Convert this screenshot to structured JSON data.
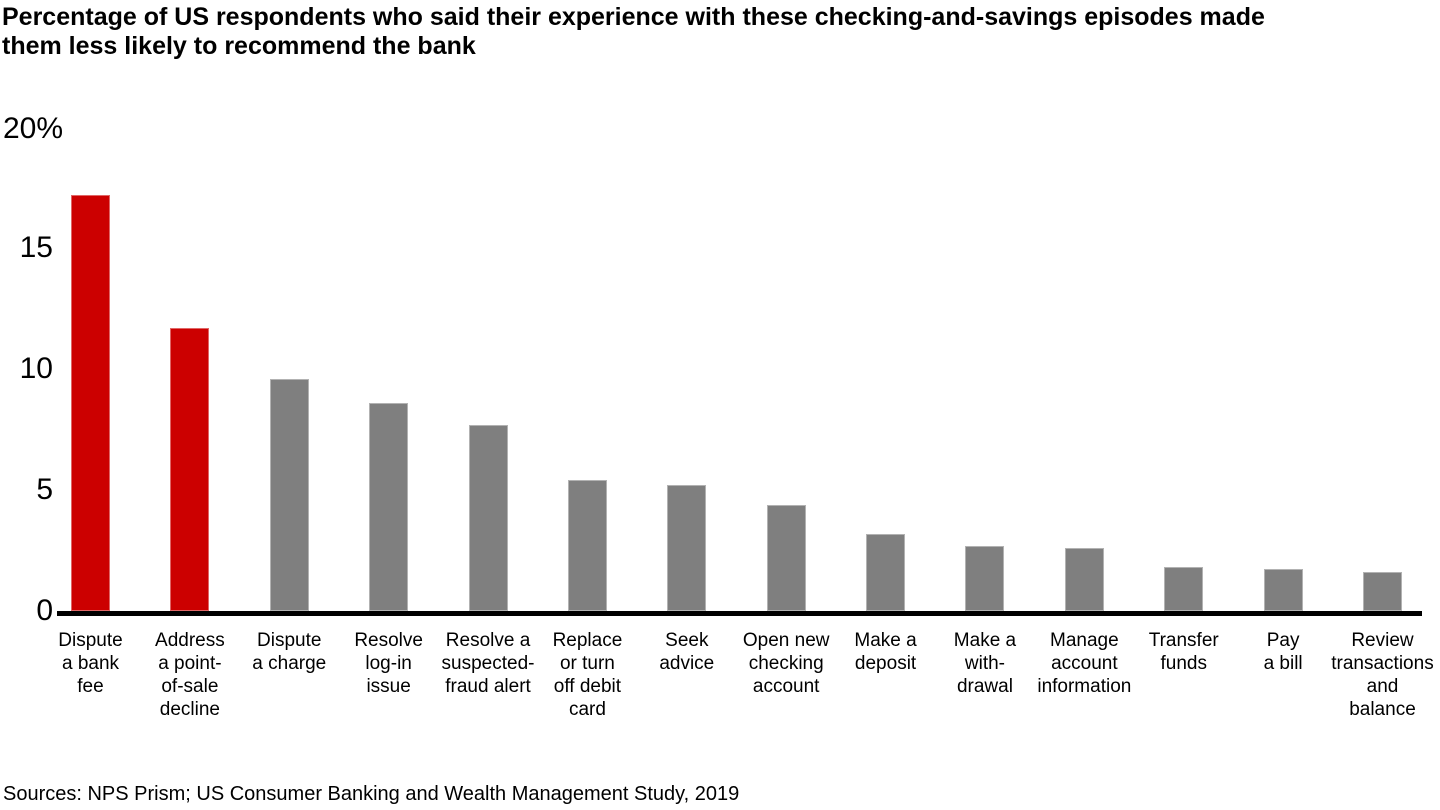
{
  "chart_data": {
    "type": "bar",
    "title": "Percentage of US respondents who said their experience with these checking-and-savings episodes made\nthem less likely to recommend the bank",
    "ymax_label": "20%",
    "ylim": [
      0,
      20
    ],
    "grid": false,
    "legend": "none",
    "yticks": [
      {
        "label": "0",
        "value": 0
      },
      {
        "label": "5",
        "value": 5
      },
      {
        "label": "10",
        "value": 10
      },
      {
        "label": "15",
        "value": 15
      }
    ],
    "categories": [
      "Dispute a bank fee",
      "Address a point-of-sale decline",
      "Dispute a charge",
      "Resolve log-in issue",
      "Resolve a suspected-fraud alert",
      "Replace or turn off debit card",
      "Seek advice",
      "Open new checking account",
      "Make a deposit",
      "Make a withdrawal",
      "Manage account information",
      "Transfer funds",
      "Pay a bill",
      "Review transactions and balance"
    ],
    "category_display": [
      "Dispute\na bank\nfee",
      "Address\na point-\nof-sale\ndecline",
      "Dispute\na charge",
      "Resolve\nlog-in\nissue",
      "Resolve a\nsuspected-\nfraud alert",
      "Replace\nor turn\noff debit\ncard",
      "Seek\nadvice",
      "Open new\nchecking\naccount",
      "Make a\ndeposit",
      "Make a\nwith-\ndrawal",
      "Manage\naccount\ninformation",
      "Transfer\nfunds",
      "Pay\na bill",
      "Review\ntransactions\nand\nbalance"
    ],
    "values": [
      17.2,
      11.7,
      9.6,
      8.6,
      7.7,
      5.4,
      5.2,
      4.4,
      3.2,
      2.7,
      2.6,
      1.8,
      1.75,
      1.6
    ],
    "bar_color": "#7F7F7F",
    "highlight_color": "#CC0000",
    "highlight_indexes": [
      0,
      1
    ],
    "axis_color": "#000000",
    "source": "Sources: NPS Prism; US Consumer Banking and Wealth Management Study, 2019"
  }
}
